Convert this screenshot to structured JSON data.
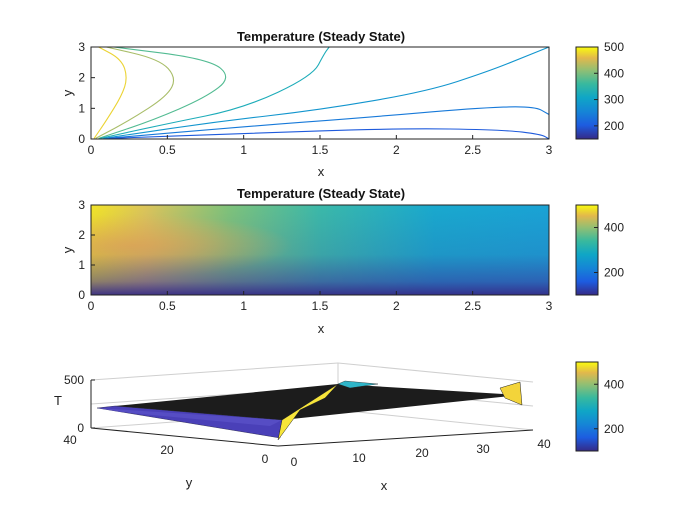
{
  "chart_data": [
    {
      "type": "contour",
      "title": "Temperature (Steady State)",
      "xlabel": "x",
      "ylabel": "y",
      "xlim": [
        0,
        3
      ],
      "ylim": [
        0,
        3
      ],
      "xticks": [
        "0",
        "0.5",
        "1",
        "1.5",
        "2",
        "2.5",
        "3"
      ],
      "yticks": [
        "0",
        "1",
        "2",
        "3"
      ],
      "colorbar": {
        "range": [
          150,
          500
        ],
        "ticks": [
          "200",
          "300",
          "400",
          "500"
        ]
      },
      "contours": [
        {
          "level": 475,
          "points": [
            [
              0.02,
              0.02
            ],
            [
              0.1,
              0.6
            ],
            [
              0.2,
              1.4
            ],
            [
              0.24,
              2.0
            ],
            [
              0.2,
              2.6
            ],
            [
              0.05,
              3.0
            ]
          ]
        },
        {
          "level": 425,
          "points": [
            [
              0.03,
              0.02
            ],
            [
              0.25,
              0.6
            ],
            [
              0.5,
              1.4
            ],
            [
              0.56,
              2.0
            ],
            [
              0.45,
              2.6
            ],
            [
              0.1,
              3.0
            ]
          ]
        },
        {
          "level": 375,
          "points": [
            [
              0.05,
              0.02
            ],
            [
              0.4,
              0.6
            ],
            [
              0.75,
              1.35
            ],
            [
              0.92,
              2.0
            ],
            [
              0.78,
              2.6
            ],
            [
              0.15,
              3.0
            ]
          ]
        },
        {
          "level": 325,
          "points": [
            [
              0.06,
              0.02
            ],
            [
              0.5,
              0.5
            ],
            [
              1.0,
              1.0
            ],
            [
              1.45,
              2.05
            ],
            [
              1.53,
              2.8
            ],
            [
              1.56,
              3.0
            ]
          ]
        },
        {
          "level": 280,
          "points": [
            [
              0.08,
              0.02
            ],
            [
              0.8,
              0.55
            ],
            [
              1.5,
              0.95
            ],
            [
              2.2,
              1.55
            ],
            [
              2.6,
              2.2
            ],
            [
              2.85,
              2.7
            ],
            [
              3.0,
              3.0
            ]
          ]
        },
        {
          "level": 240,
          "points": [
            [
              0.1,
              0.02
            ],
            [
              1.0,
              0.4
            ],
            [
              1.8,
              0.7
            ],
            [
              2.5,
              1.0
            ],
            [
              2.9,
              1.08
            ],
            [
              3.0,
              0.8
            ]
          ]
        },
        {
          "level": 200,
          "points": [
            [
              0.12,
              0.02
            ],
            [
              1.0,
              0.18
            ],
            [
              2.0,
              0.35
            ],
            [
              2.7,
              0.3
            ],
            [
              2.95,
              0.15
            ],
            [
              3.0,
              0.0
            ]
          ]
        }
      ]
    },
    {
      "type": "heatmap",
      "title": "Temperature (Steady State)",
      "xlabel": "x",
      "ylabel": "y",
      "xlim": [
        0,
        3
      ],
      "ylim": [
        0,
        3
      ],
      "xticks": [
        "0",
        "0.5",
        "1",
        "1.5",
        "2",
        "2.5",
        "3"
      ],
      "yticks": [
        "0",
        "1",
        "2",
        "3"
      ],
      "colorbar": {
        "range": [
          100,
          500
        ],
        "ticks": [
          "200",
          "400"
        ]
      },
      "field": {
        "left_boundary_T": 500,
        "top_T": 300,
        "right_T": 300,
        "bottom_T": 100,
        "peak_T": 480
      }
    },
    {
      "type": "surface",
      "title": "",
      "xlabel": "x",
      "ylabel": "y",
      "zlabel": "T",
      "xticks": [
        "0",
        "10",
        "20",
        "30",
        "40"
      ],
      "yticks": [
        "0",
        "20",
        "40"
      ],
      "zticks": [
        "0",
        "500"
      ],
      "colorbar": {
        "range": [
          100,
          500
        ],
        "ticks": [
          "200",
          "400"
        ]
      }
    }
  ]
}
